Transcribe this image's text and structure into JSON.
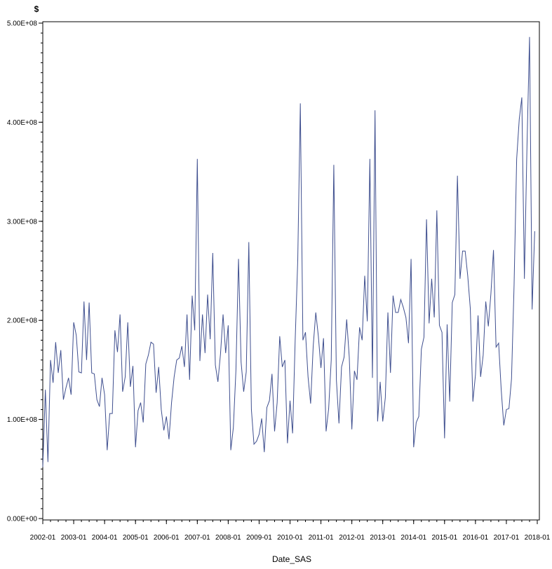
{
  "chart_data": {
    "type": "line",
    "title": "",
    "xlabel": "Date_SAS",
    "ylabel": "$",
    "ylim": [
      0,
      500000000
    ],
    "xlim": [
      "2002-01",
      "2018-01"
    ],
    "y_ticks": [
      {
        "value": 0,
        "label": "0.00E+00"
      },
      {
        "value": 100000000,
        "label": "1.00E+08"
      },
      {
        "value": 200000000,
        "label": "2.00E+08"
      },
      {
        "value": 300000000,
        "label": "3.00E+08"
      },
      {
        "value": 400000000,
        "label": "4.00E+08"
      },
      {
        "value": 500000000,
        "label": "5.00E+08"
      }
    ],
    "x_ticks": [
      "2002-01",
      "2003-01",
      "2004-01",
      "2005-01",
      "2006-01",
      "2007-01",
      "2008-01",
      "2009-01",
      "2010-01",
      "2011-01",
      "2012-01",
      "2013-01",
      "2014-01",
      "2015-01",
      "2016-01",
      "2017-01",
      "2018-01"
    ],
    "grid": false,
    "series": [
      {
        "color": "#3f4f8f",
        "x": [
          "2002-01",
          "2002-02",
          "2002-03",
          "2002-04",
          "2002-05",
          "2002-06",
          "2002-07",
          "2002-08",
          "2002-09",
          "2002-10",
          "2002-11",
          "2002-12",
          "2003-01",
          "2003-02",
          "2003-03",
          "2003-04",
          "2003-05",
          "2003-06",
          "2003-07",
          "2003-08",
          "2003-09",
          "2003-10",
          "2003-11",
          "2003-12",
          "2004-01",
          "2004-02",
          "2004-03",
          "2004-04",
          "2004-05",
          "2004-06",
          "2004-07",
          "2004-08",
          "2004-09",
          "2004-10",
          "2004-11",
          "2004-12",
          "2005-01",
          "2005-02",
          "2005-03",
          "2005-04",
          "2005-05",
          "2005-06",
          "2005-07",
          "2005-08",
          "2005-09",
          "2005-10",
          "2005-11",
          "2005-12",
          "2006-01",
          "2006-02",
          "2006-03",
          "2006-04",
          "2006-05",
          "2006-06",
          "2006-07",
          "2006-08",
          "2006-09",
          "2006-10",
          "2006-11",
          "2006-12",
          "2007-01",
          "2007-02",
          "2007-03",
          "2007-04",
          "2007-05",
          "2007-06",
          "2007-07",
          "2007-08",
          "2007-09",
          "2007-10",
          "2007-11",
          "2007-12",
          "2008-01",
          "2008-02",
          "2008-03",
          "2008-04",
          "2008-05",
          "2008-06",
          "2008-07",
          "2008-08",
          "2008-09",
          "2008-10",
          "2008-11",
          "2008-12",
          "2009-01",
          "2009-02",
          "2009-03",
          "2009-04",
          "2009-05",
          "2009-06",
          "2009-07",
          "2009-08",
          "2009-09",
          "2009-10",
          "2009-11",
          "2009-12",
          "2010-01",
          "2010-02",
          "2010-03",
          "2010-04",
          "2010-05",
          "2010-06",
          "2010-07",
          "2010-08",
          "2010-09",
          "2010-10",
          "2010-11",
          "2010-12",
          "2011-01",
          "2011-02",
          "2011-03",
          "2011-04",
          "2011-05",
          "2011-06",
          "2011-07",
          "2011-08",
          "2011-09",
          "2011-10",
          "2011-11",
          "2011-12",
          "2012-01",
          "2012-02",
          "2012-03",
          "2012-04",
          "2012-05",
          "2012-06",
          "2012-07",
          "2012-08",
          "2012-09",
          "2012-10",
          "2012-11",
          "2012-12",
          "2013-01",
          "2013-02",
          "2013-03",
          "2013-04",
          "2013-05",
          "2013-06",
          "2013-07",
          "2013-08",
          "2013-09",
          "2013-10",
          "2013-11",
          "2013-12",
          "2014-01",
          "2014-02",
          "2014-03",
          "2014-04",
          "2014-05",
          "2014-06",
          "2014-07",
          "2014-08",
          "2014-09",
          "2014-10",
          "2014-11",
          "2014-12",
          "2015-01",
          "2015-02",
          "2015-03",
          "2015-04",
          "2015-05",
          "2015-06",
          "2015-07",
          "2015-08",
          "2015-09",
          "2015-10",
          "2015-11",
          "2015-12",
          "2016-01",
          "2016-02",
          "2016-03",
          "2016-04",
          "2016-05",
          "2016-06",
          "2016-07",
          "2016-08",
          "2016-09",
          "2016-10",
          "2016-11",
          "2016-12",
          "2017-01",
          "2017-02",
          "2017-03",
          "2017-04",
          "2017-05",
          "2017-06",
          "2017-07",
          "2017-08",
          "2017-09",
          "2017-10",
          "2017-11",
          "2017-12"
        ],
        "values": [
          52000000,
          130000000,
          57000000,
          160000000,
          137000000,
          178000000,
          147000000,
          170000000,
          120000000,
          132000000,
          142000000,
          125000000,
          198000000,
          185000000,
          148000000,
          147000000,
          219000000,
          160000000,
          218000000,
          147000000,
          146000000,
          120000000,
          113000000,
          142000000,
          125000000,
          69000000,
          106000000,
          106000000,
          190000000,
          168000000,
          206000000,
          128000000,
          143000000,
          198000000,
          133000000,
          154000000,
          72000000,
          109000000,
          117000000,
          97000000,
          156000000,
          165000000,
          178000000,
          176000000,
          127000000,
          153000000,
          110000000,
          89000000,
          103000000,
          80000000,
          117000000,
          143000000,
          160000000,
          162000000,
          174000000,
          153000000,
          206000000,
          140000000,
          225000000,
          190000000,
          363000000,
          159000000,
          206000000,
          167000000,
          226000000,
          181000000,
          268000000,
          155000000,
          138000000,
          166000000,
          206000000,
          167000000,
          195000000,
          69000000,
          92000000,
          150000000,
          262000000,
          158000000,
          128000000,
          148000000,
          279000000,
          110000000,
          75000000,
          78000000,
          85000000,
          101000000,
          67000000,
          112000000,
          119000000,
          146000000,
          88000000,
          117000000,
          184000000,
          153000000,
          160000000,
          76000000,
          119000000,
          86000000,
          180000000,
          261000000,
          419000000,
          180000000,
          188000000,
          143000000,
          116000000,
          174000000,
          208000000,
          184000000,
          152000000,
          182000000,
          88000000,
          111000000,
          160000000,
          357000000,
          140000000,
          96000000,
          153000000,
          163000000,
          201000000,
          163000000,
          90000000,
          149000000,
          140000000,
          193000000,
          180000000,
          245000000,
          199000000,
          363000000,
          142000000,
          412000000,
          98000000,
          138000000,
          98000000,
          122000000,
          208000000,
          147000000,
          225000000,
          208000000,
          208000000,
          221000000,
          213000000,
          203000000,
          177000000,
          262000000,
          72000000,
          97000000,
          103000000,
          171000000,
          183000000,
          302000000,
          197000000,
          242000000,
          203000000,
          311000000,
          195000000,
          188000000,
          81000000,
          196000000,
          118000000,
          218000000,
          226000000,
          346000000,
          242000000,
          270000000,
          270000000,
          245000000,
          212000000,
          118000000,
          145000000,
          205000000,
          143000000,
          165000000,
          219000000,
          194000000,
          227000000,
          271000000,
          173000000,
          177000000,
          130000000,
          94000000,
          110000000,
          111000000,
          141000000,
          236000000,
          363000000,
          403000000,
          425000000,
          242000000,
          375000000,
          486000000,
          211000000,
          290000000
        ]
      }
    ]
  }
}
